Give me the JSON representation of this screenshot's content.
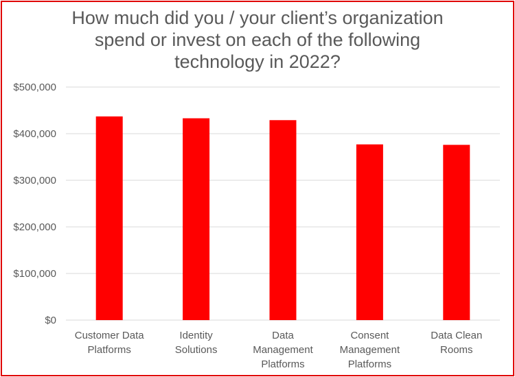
{
  "chart_data": {
    "type": "bar",
    "title": "How much did you / your client’s organization spend or invest on each of the following technology in 2022?",
    "title_lines": [
      "How much did you / your client’s organization",
      "spend or invest on each of the following",
      "technology in 2022?"
    ],
    "categories": [
      [
        "Customer Data",
        "Platforms"
      ],
      [
        "Identity",
        "Solutions"
      ],
      [
        "Data",
        "Management",
        "Platforms"
      ],
      [
        "Consent",
        "Management",
        "Platforms"
      ],
      [
        "Data Clean",
        "Rooms"
      ]
    ],
    "values": [
      437000,
      433000,
      429000,
      377000,
      376000
    ],
    "ylim": [
      0,
      500000
    ],
    "yticks": [
      0,
      100000,
      200000,
      300000,
      400000,
      500000
    ],
    "ytick_labels": [
      "$0",
      "$100,000",
      "$200,000",
      "$300,000",
      "$400,000",
      "$500,000"
    ],
    "xlabel": "",
    "ylabel": "",
    "grid": true,
    "legend": "none",
    "bar_color": "#ff0000",
    "grid_color": "#d9d9d9",
    "text_color": "#595959",
    "border_color": "#e00000"
  }
}
